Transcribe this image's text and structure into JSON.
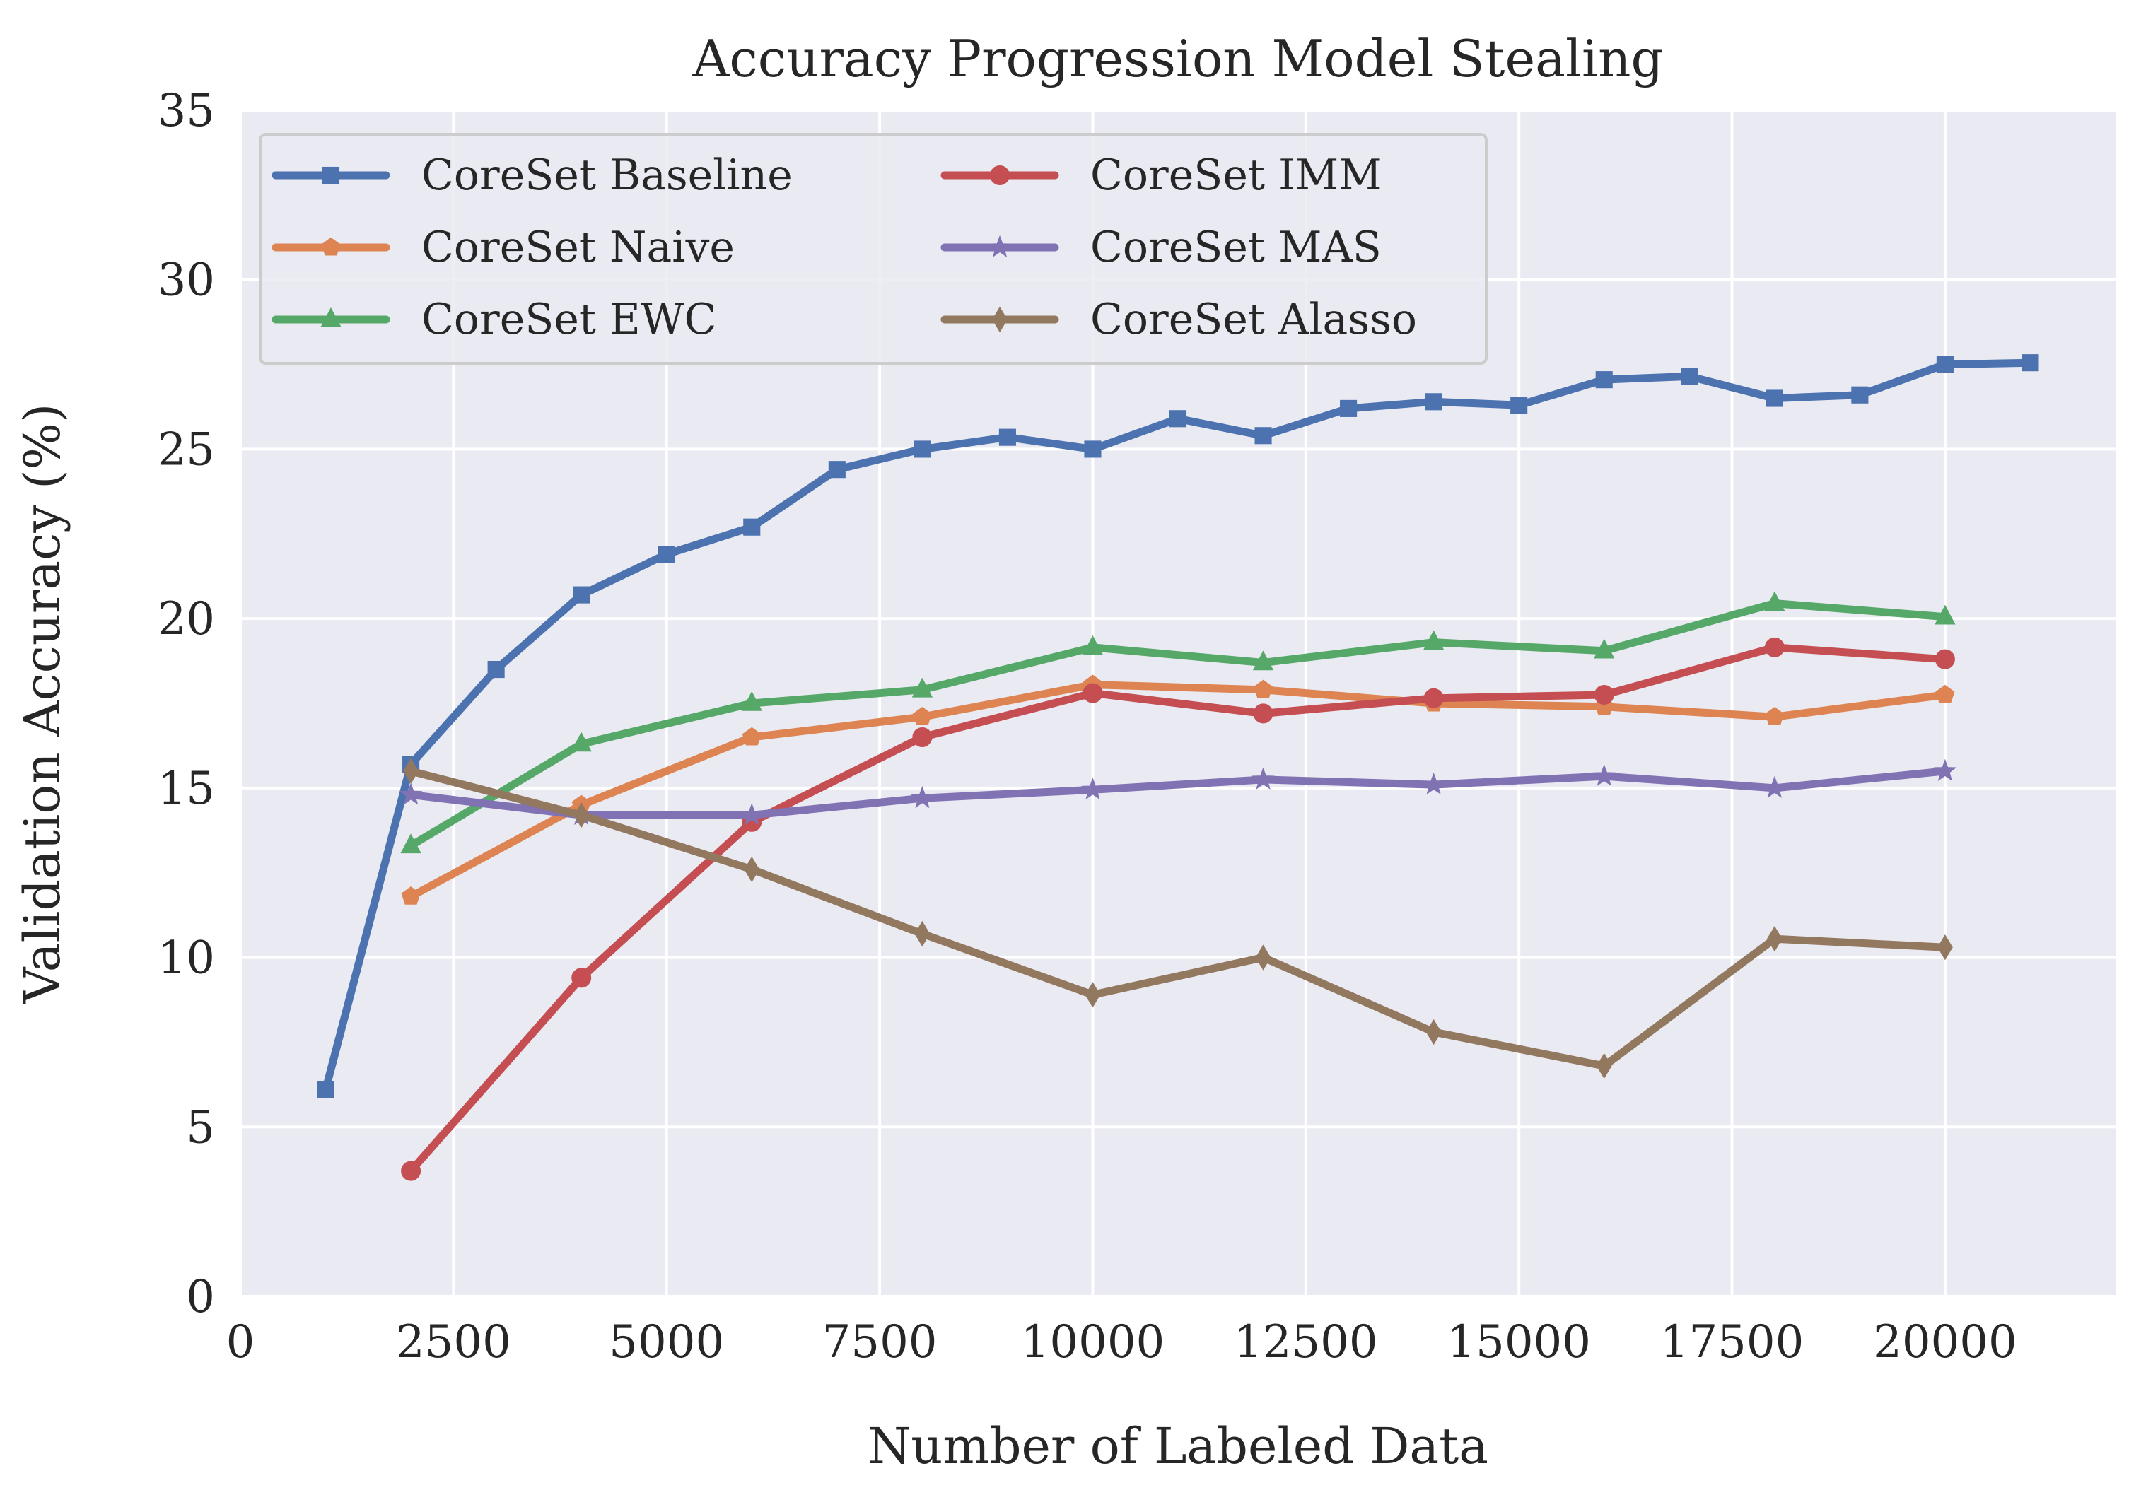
{
  "chart_data": {
    "type": "line",
    "title": "Accuracy Progression Model Stealing",
    "xlabel": "Number of Labeled Data",
    "ylabel": "Validation Accuracy (%)",
    "xlim": [
      0,
      22000
    ],
    "ylim": [
      0,
      35
    ],
    "xticks": [
      0,
      2500,
      5000,
      7500,
      10000,
      12500,
      15000,
      17500,
      20000
    ],
    "xtick_labels": [
      "0",
      "2500",
      "5000",
      "7500",
      "10000",
      "12500",
      "15000",
      "17500",
      "20000"
    ],
    "yticks": [
      0,
      5,
      10,
      15,
      20,
      25,
      30,
      35
    ],
    "ytick_labels": [
      "0",
      "5",
      "10",
      "15",
      "20",
      "25",
      "30",
      "35"
    ],
    "grid": true,
    "legend": {
      "position": "top-left",
      "columns": 2
    },
    "series": [
      {
        "name": "CoreSet Baseline",
        "color": "#4c72b0",
        "marker": "square",
        "x": [
          1000,
          2000,
          3000,
          4000,
          5000,
          6000,
          7000,
          8000,
          9000,
          10000,
          11000,
          12000,
          13000,
          14000,
          15000,
          16000,
          17000,
          18000,
          19000,
          20000,
          21000
        ],
        "y": [
          6.1,
          15.7,
          18.5,
          20.7,
          21.9,
          22.7,
          24.4,
          25.0,
          25.35,
          25.0,
          25.9,
          25.4,
          26.2,
          26.4,
          26.3,
          27.05,
          27.15,
          26.5,
          26.6,
          27.5,
          27.55
        ]
      },
      {
        "name": "CoreSet Naive",
        "color": "#dd8452",
        "marker": "pentagon",
        "x": [
          2000,
          4000,
          6000,
          8000,
          10000,
          12000,
          14000,
          16000,
          18000,
          20000
        ],
        "y": [
          11.8,
          14.5,
          16.5,
          17.1,
          18.05,
          17.9,
          17.5,
          17.4,
          17.1,
          17.75
        ]
      },
      {
        "name": "CoreSet EWC",
        "color": "#55a868",
        "marker": "triangle",
        "x": [
          2000,
          4000,
          6000,
          8000,
          10000,
          12000,
          14000,
          16000,
          18000,
          20000
        ],
        "y": [
          13.3,
          16.3,
          17.5,
          17.9,
          19.15,
          18.7,
          19.3,
          19.05,
          20.45,
          20.05
        ]
      },
      {
        "name": "CoreSet IMM",
        "color": "#c44e52",
        "marker": "circle",
        "x": [
          2000,
          4000,
          6000,
          8000,
          10000,
          12000,
          14000,
          16000,
          18000,
          20000
        ],
        "y": [
          3.7,
          9.4,
          14.0,
          16.5,
          17.8,
          17.2,
          17.65,
          17.75,
          19.15,
          18.8
        ]
      },
      {
        "name": "CoreSet MAS",
        "color": "#8172b3",
        "marker": "star",
        "x": [
          2000,
          4000,
          6000,
          8000,
          10000,
          12000,
          14000,
          16000,
          18000,
          20000
        ],
        "y": [
          14.8,
          14.2,
          14.2,
          14.7,
          14.95,
          15.25,
          15.1,
          15.35,
          15.0,
          15.5
        ]
      },
      {
        "name": "CoreSet Alasso",
        "color": "#937860",
        "marker": "diamond",
        "x": [
          2000,
          4000,
          6000,
          8000,
          10000,
          12000,
          14000,
          16000,
          18000,
          20000
        ],
        "y": [
          15.5,
          14.2,
          12.6,
          10.7,
          8.9,
          10.0,
          7.8,
          6.8,
          10.55,
          10.3
        ]
      }
    ]
  }
}
